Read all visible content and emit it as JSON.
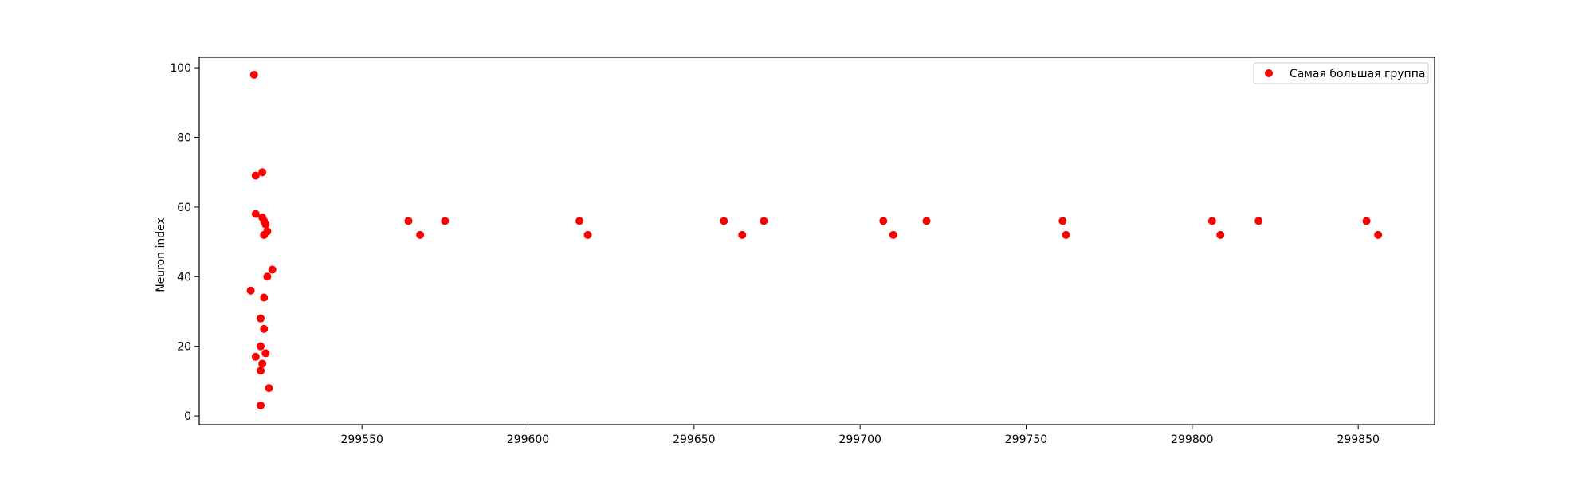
{
  "chart_data": {
    "type": "scatter",
    "title": "",
    "xlabel": "",
    "ylabel": "Neuron index",
    "xlim": [
      299501,
      299873
    ],
    "ylim": [
      -2.5,
      103
    ],
    "xticks": [
      299550,
      299600,
      299650,
      299700,
      299750,
      299800,
      299850
    ],
    "yticks": [
      0,
      20,
      40,
      60,
      80,
      100
    ],
    "grid": false,
    "legend": {
      "position": "top-right",
      "entries": [
        "Самая большая группа"
      ]
    },
    "series": [
      {
        "name": "Самая большая группа",
        "color": "#ff0000",
        "marker": "circle",
        "points": [
          {
            "x": 299517.5,
            "y": 98
          },
          {
            "x": 299518,
            "y": 69
          },
          {
            "x": 299520,
            "y": 70
          },
          {
            "x": 299518,
            "y": 58
          },
          {
            "x": 299520,
            "y": 57
          },
          {
            "x": 299520.5,
            "y": 56
          },
          {
            "x": 299521,
            "y": 55
          },
          {
            "x": 299521.5,
            "y": 53
          },
          {
            "x": 299520.5,
            "y": 52
          },
          {
            "x": 299523,
            "y": 42
          },
          {
            "x": 299521.5,
            "y": 40
          },
          {
            "x": 299516.5,
            "y": 36
          },
          {
            "x": 299520.5,
            "y": 34
          },
          {
            "x": 299519.5,
            "y": 28
          },
          {
            "x": 299520.5,
            "y": 25
          },
          {
            "x": 299519.5,
            "y": 20
          },
          {
            "x": 299521,
            "y": 18
          },
          {
            "x": 299518,
            "y": 17
          },
          {
            "x": 299520,
            "y": 15
          },
          {
            "x": 299519.5,
            "y": 13
          },
          {
            "x": 299522,
            "y": 8
          },
          {
            "x": 299519.5,
            "y": 3
          },
          {
            "x": 299564,
            "y": 56
          },
          {
            "x": 299567.5,
            "y": 52
          },
          {
            "x": 299575,
            "y": 56
          },
          {
            "x": 299615.5,
            "y": 56
          },
          {
            "x": 299618,
            "y": 52
          },
          {
            "x": 299659,
            "y": 56
          },
          {
            "x": 299664.5,
            "y": 52
          },
          {
            "x": 299671,
            "y": 56
          },
          {
            "x": 299707,
            "y": 56
          },
          {
            "x": 299710,
            "y": 52
          },
          {
            "x": 299720,
            "y": 56
          },
          {
            "x": 299761,
            "y": 56
          },
          {
            "x": 299762,
            "y": 52
          },
          {
            "x": 299806,
            "y": 56
          },
          {
            "x": 299808.5,
            "y": 52
          },
          {
            "x": 299820,
            "y": 56
          },
          {
            "x": 299852.5,
            "y": 56
          },
          {
            "x": 299856,
            "y": 52
          }
        ]
      }
    ]
  }
}
